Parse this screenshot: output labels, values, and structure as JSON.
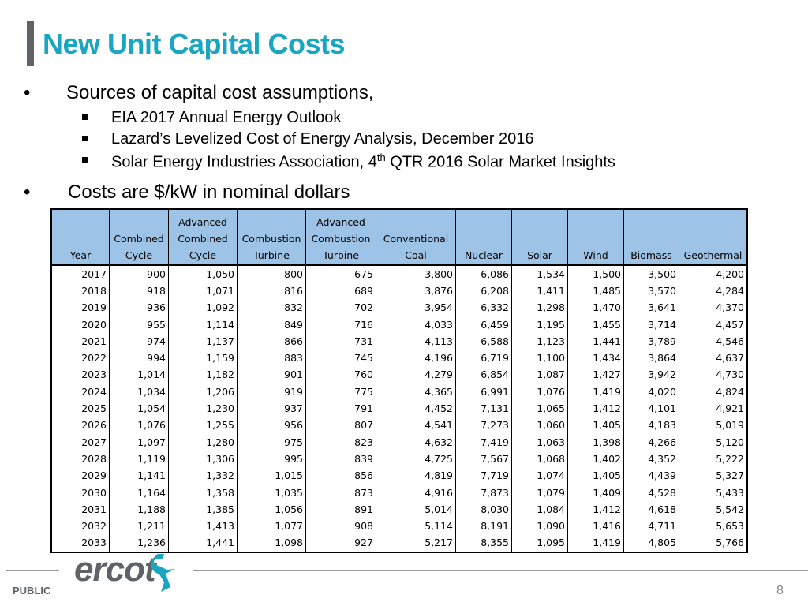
{
  "title": "New Unit Capital Costs",
  "bullets": [
    {
      "text": "Sources of capital cost assumptions,",
      "sub": [
        {
          "text": "EIA 2017 Annual Energy Outlook"
        },
        {
          "text": "Lazard’s Levelized Cost of Energy Analysis, December 2016"
        },
        {
          "pre": "Solar Energy Industries Association, 4",
          "sup": "th",
          "post": " QTR 2016 Solar Market Insights"
        }
      ]
    },
    {
      "text": "Costs are $/kW in nominal dollars"
    }
  ],
  "table": {
    "headers": [
      [
        "Year"
      ],
      [
        "Combined",
        "Cycle"
      ],
      [
        "Advanced",
        "Combined",
        "Cycle"
      ],
      [
        "Combustion",
        "Turbine"
      ],
      [
        "Advanced",
        "Combustion",
        "Turbine"
      ],
      [
        "Conventional",
        "Coal"
      ],
      [
        "Nuclear"
      ],
      [
        "Solar"
      ],
      [
        "Wind"
      ],
      [
        "Biomass"
      ],
      [
        "Geothermal"
      ]
    ],
    "rows": [
      [
        "2017",
        "900",
        "1,050",
        "800",
        "675",
        "3,800",
        "6,086",
        "1,534",
        "1,500",
        "3,500",
        "4,200"
      ],
      [
        "2018",
        "918",
        "1,071",
        "816",
        "689",
        "3,876",
        "6,208",
        "1,411",
        "1,485",
        "3,570",
        "4,284"
      ],
      [
        "2019",
        "936",
        "1,092",
        "832",
        "702",
        "3,954",
        "6,332",
        "1,298",
        "1,470",
        "3,641",
        "4,370"
      ],
      [
        "2020",
        "955",
        "1,114",
        "849",
        "716",
        "4,033",
        "6,459",
        "1,195",
        "1,455",
        "3,714",
        "4,457"
      ],
      [
        "2021",
        "974",
        "1,137",
        "866",
        "731",
        "4,113",
        "6,588",
        "1,123",
        "1,441",
        "3,789",
        "4,546"
      ],
      [
        "2022",
        "994",
        "1,159",
        "883",
        "745",
        "4,196",
        "6,719",
        "1,100",
        "1,434",
        "3,864",
        "4,637"
      ],
      [
        "2023",
        "1,014",
        "1,182",
        "901",
        "760",
        "4,279",
        "6,854",
        "1,087",
        "1,427",
        "3,942",
        "4,730"
      ],
      [
        "2024",
        "1,034",
        "1,206",
        "919",
        "775",
        "4,365",
        "6,991",
        "1,076",
        "1,419",
        "4,020",
        "4,824"
      ],
      [
        "2025",
        "1,054",
        "1,230",
        "937",
        "791",
        "4,452",
        "7,131",
        "1,065",
        "1,412",
        "4,101",
        "4,921"
      ],
      [
        "2026",
        "1,076",
        "1,255",
        "956",
        "807",
        "4,541",
        "7,273",
        "1,060",
        "1,405",
        "4,183",
        "5,019"
      ],
      [
        "2027",
        "1,097",
        "1,280",
        "975",
        "823",
        "4,632",
        "7,419",
        "1,063",
        "1,398",
        "4,266",
        "5,120"
      ],
      [
        "2028",
        "1,119",
        "1,306",
        "995",
        "839",
        "4,725",
        "7,567",
        "1,068",
        "1,402",
        "4,352",
        "5,222"
      ],
      [
        "2029",
        "1,141",
        "1,332",
        "1,015",
        "856",
        "4,819",
        "7,719",
        "1,074",
        "1,405",
        "4,439",
        "5,327"
      ],
      [
        "2030",
        "1,164",
        "1,358",
        "1,035",
        "873",
        "4,916",
        "7,873",
        "1,079",
        "1,409",
        "4,528",
        "5,433"
      ],
      [
        "2031",
        "1,188",
        "1,385",
        "1,056",
        "891",
        "5,014",
        "8,030",
        "1,084",
        "1,412",
        "4,618",
        "5,542"
      ],
      [
        "2032",
        "1,211",
        "1,413",
        "1,077",
        "908",
        "5,114",
        "8,191",
        "1,090",
        "1,416",
        "4,711",
        "5,653"
      ],
      [
        "2033",
        "1,236",
        "1,441",
        "1,098",
        "927",
        "5,217",
        "8,355",
        "1,095",
        "1,419",
        "4,805",
        "5,766"
      ]
    ]
  },
  "footer": {
    "logo_text": "ercot",
    "classification": "PUBLIC",
    "page_number": "8"
  },
  "colors": {
    "title": "#1aa6c0",
    "header_fill": "#9dc3e6",
    "logo_gray": "#5f6368",
    "logo_accent": "#1aa6c0"
  }
}
